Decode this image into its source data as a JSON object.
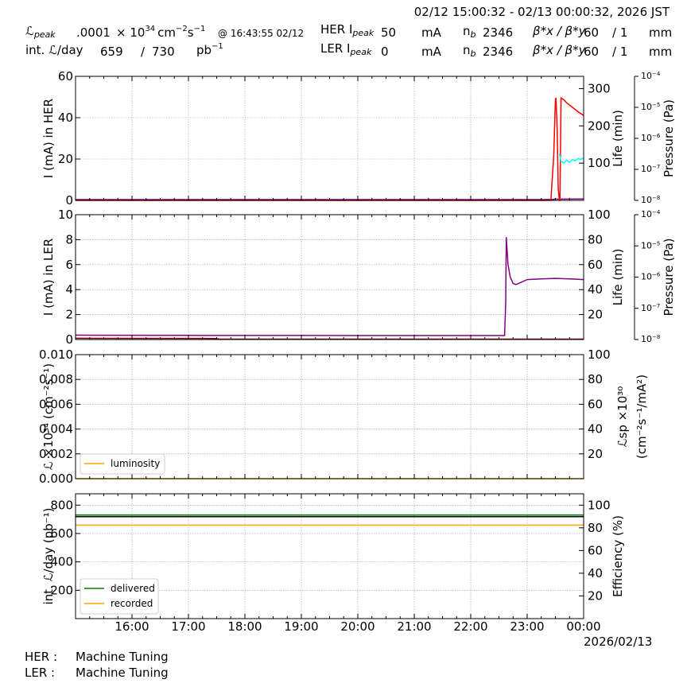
{
  "header": {
    "time_range": "02/12 15:00:32 - 02/13 00:00:32, 2026 JST",
    "lpeak_label": "ℒ",
    "lpeak_sub": "peak",
    "lpeak_value": ".0001",
    "lpeak_unit_x": "× 10",
    "lpeak_unit_exp": "34",
    "lpeak_unit_cm": "cm",
    "lpeak_unit_cm_exp": "−2",
    "lpeak_unit_s": "s",
    "lpeak_unit_s_exp": "−1",
    "lpeak_at": "@ 16:43:55 02/12",
    "intl_label": "int. ℒ/day",
    "intl_value": "659",
    "intl_slash": "/",
    "intl_total": "730",
    "intl_unit": "pb",
    "intl_unit_exp": "−1",
    "her_label": "HER I",
    "her_sub": "peak",
    "her_value": "50",
    "her_unit": "mA",
    "ler_label": "LER I",
    "ler_sub": "peak",
    "ler_value": "0",
    "ler_unit": "mA",
    "nb_label": "n",
    "nb_sub": "b",
    "her_nb": "2346",
    "ler_nb": "2346",
    "beta_label": "β*x / β*y",
    "her_betax": "60",
    "her_betay": "/ 1",
    "her_beta_unit": "mm",
    "ler_betax": "60",
    "ler_betay": "/ 1",
    "ler_beta_unit": "mm"
  },
  "footer": {
    "her_label": "HER :",
    "her_status": "Machine Tuning",
    "ler_label": "LER :",
    "ler_status": "Machine Tuning",
    "date": "2026/02/13"
  },
  "colors": {
    "current": "#800080",
    "lifetime": "#ff0000",
    "pressure": "#00ffff",
    "luminosity": "#ffa500",
    "delivered": "#008000",
    "recorded": "#ffa500",
    "ler_lifetime": "#8b0000"
  },
  "chart_data": [
    {
      "type": "line",
      "id": "her",
      "xlim": [
        15.0,
        24.0
      ],
      "xticks": [
        16,
        17,
        18,
        19,
        20,
        21,
        22,
        23,
        24
      ],
      "xtick_labels": [
        "16:00",
        "17:00",
        "18:00",
        "19:00",
        "20:00",
        "21:00",
        "22:00",
        "23:00",
        "00:00"
      ],
      "ylabel": "I (mA) in HER",
      "ylim": [
        0,
        60
      ],
      "yticks": [
        0,
        20,
        40,
        60
      ],
      "y2label": "Life (min)",
      "y2lim": [
        0,
        333
      ],
      "y2ticks": [
        100,
        200,
        300
      ],
      "y3label": "Pressure (Pa)",
      "y3ticks_exp": [
        "−8",
        "−7",
        "−6",
        "−5",
        "−4"
      ],
      "series": [
        {
          "axis": "y",
          "color": "#800080",
          "x": [
            15.0,
            23.3,
            23.45,
            23.5,
            23.55,
            23.6,
            23.65,
            24.0
          ],
          "y": [
            0.4,
            0.4,
            0.5,
            0.6,
            0.6,
            0.6,
            0.6,
            0.7
          ]
        },
        {
          "axis": "y2",
          "color": "#ff0000",
          "x": [
            15.0,
            23.42,
            23.47,
            23.5,
            23.51,
            23.53,
            23.55,
            23.57,
            23.58,
            23.6,
            23.65,
            23.7,
            23.8,
            23.9,
            24.0
          ],
          "y": [
            0,
            0,
            120,
            270,
            275,
            200,
            30,
            0,
            0,
            275,
            270,
            262,
            250,
            238,
            228
          ]
        },
        {
          "axis": "y2",
          "color": "#00ffff",
          "x": [
            23.57,
            23.6,
            23.65,
            23.7,
            23.75,
            23.8,
            23.85,
            23.9,
            23.95,
            24.0
          ],
          "y": [
            125,
            105,
            100,
            108,
            102,
            110,
            106,
            112,
            110,
            114
          ]
        }
      ]
    },
    {
      "type": "line",
      "id": "ler",
      "xlim": [
        15.0,
        24.0
      ],
      "ylabel": "I (mA) in LER",
      "ylim": [
        0,
        10
      ],
      "yticks": [
        0,
        2,
        4,
        6,
        8,
        10
      ],
      "y2label": "Life (min)",
      "y2lim": [
        0,
        100
      ],
      "y2ticks": [
        20,
        40,
        60,
        80,
        100
      ],
      "y3label": "Pressure (Pa)",
      "y3ticks_exp": [
        "−8",
        "−7",
        "−6",
        "−5",
        "−4"
      ],
      "series": [
        {
          "axis": "y",
          "color": "#800080",
          "x": [
            15.0,
            17.0,
            20.0,
            22.6,
            22.62,
            22.63,
            22.66,
            22.7,
            22.75,
            22.8,
            22.9,
            23.0,
            23.2,
            23.5,
            23.8,
            24.0
          ],
          "y": [
            0.35,
            0.33,
            0.32,
            0.32,
            3.0,
            8.2,
            6.0,
            5.0,
            4.5,
            4.4,
            4.6,
            4.8,
            4.85,
            4.9,
            4.85,
            4.8
          ]
        },
        {
          "axis": "y2",
          "color": "#8b0000",
          "x": [
            15.0,
            17.5,
            17.55,
            24.0
          ],
          "y": [
            1.0,
            0.8,
            0.3,
            0.3
          ]
        }
      ]
    },
    {
      "type": "line",
      "id": "lumi",
      "xlim": [
        15.0,
        24.0
      ],
      "ylabel": "ℒ ×10³⁴ (cm⁻²s⁻¹)",
      "ylim": [
        0,
        0.01
      ],
      "yticks": [
        0.0,
        0.002,
        0.004,
        0.006,
        0.008,
        0.01
      ],
      "ytick_labels": [
        "0.000",
        "0.002",
        "0.004",
        "0.006",
        "0.008",
        "0.010"
      ],
      "y2label_1": "ℒsp ×10³⁰",
      "y2label_2": "(cm⁻²s⁻¹/mA²)",
      "y2lim": [
        0,
        100
      ],
      "y2ticks": [
        20,
        40,
        60,
        80,
        100
      ],
      "legend": "lower-left",
      "series": [
        {
          "name": "luminosity",
          "axis": "y",
          "color": "#ffa500",
          "x": [
            15.0,
            24.0
          ],
          "y": [
            0.0,
            0.0
          ]
        }
      ]
    },
    {
      "type": "line",
      "id": "intlumi",
      "xlim": [
        15.0,
        24.0
      ],
      "ylabel": "int. ℒ/day (pb⁻¹)",
      "ylim": [
        0,
        880
      ],
      "yticks": [
        200,
        400,
        600,
        800
      ],
      "y2label": "Efficiency (%)",
      "y2lim": [
        0,
        110
      ],
      "y2ticks": [
        20,
        40,
        60,
        80,
        100
      ],
      "legend": "lower-left",
      "series": [
        {
          "name": "delivered",
          "axis": "y",
          "color": "#008000",
          "x": [
            15.0,
            24.0
          ],
          "y": [
            730,
            730
          ]
        },
        {
          "name": "recorded",
          "axis": "y",
          "color": "#ffa500",
          "x": [
            15.0,
            24.0
          ],
          "y": [
            659,
            659
          ]
        },
        {
          "axis": "y",
          "color": "#000000",
          "x": [
            15.0,
            24.0
          ],
          "y": [
            719,
            719
          ]
        }
      ]
    }
  ]
}
